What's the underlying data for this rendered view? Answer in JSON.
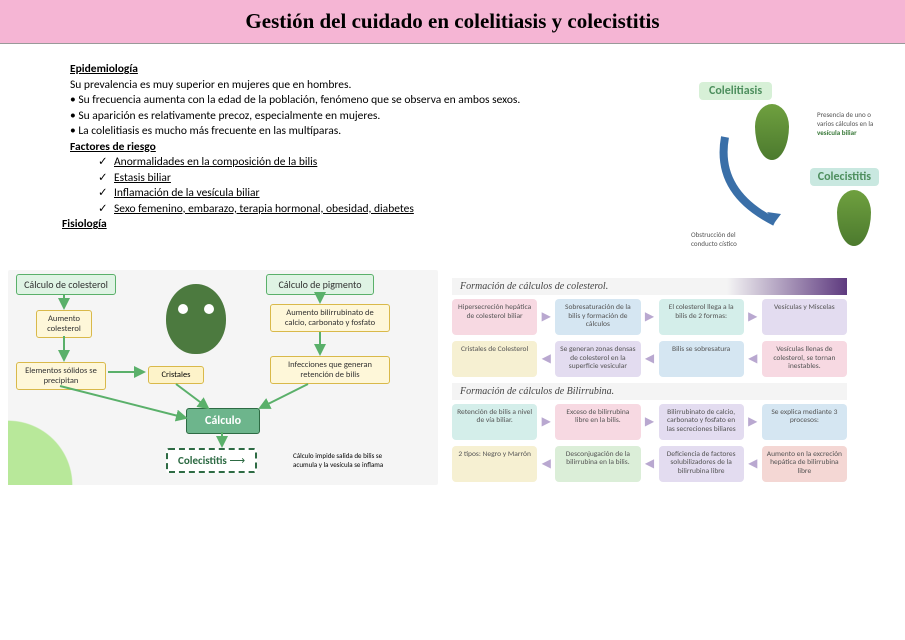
{
  "title": "Gestión del cuidado en colelitiasis y colecistitis",
  "epi": {
    "head": "Epidemiología",
    "l1": "Su prevalencia es muy superior en mujeres que en hombres.",
    "l2": "• Su frecuencia aumenta con la edad de la población, fenómeno que se observa en ambos sexos.",
    "l3": "• Su aparición es relativamente precoz, especialmente en mujeres.",
    "l4": "• La colelitiasis es mucho más frecuente en las multíparas."
  },
  "factors": {
    "head": "Factores de riesgo",
    "items": [
      "Anormalidades en la composición de la bilis",
      "Estasis biliar",
      "Inflamación de la vesícula biliar",
      "Sexo femenino, embarazo, terapia hormonal, obesidad, diabetes"
    ]
  },
  "fisio": "Fisiología",
  "topRight": {
    "colelitiasis": "Colelitiasis",
    "colecistitis": "Colecistitis",
    "desc1a": "Presencia de uno o varios cálculos en la ",
    "desc1b": "vesícula biliar",
    "desc2": "Obstrucción del conducto cístico"
  },
  "flowLeft": {
    "colesterol": "Cálculo de colesterol",
    "pigmento": "Cálculo de pigmento",
    "aumentoCol": "Aumento colesterol",
    "aumentoBil": "Aumento bilirrubinato de calcio, carbonato y fosfato",
    "elementos": "Elementos sólidos se precipitan",
    "cristales": "Cristales",
    "infecciones": "Infecciones que generan retención de bilis",
    "calculo": "Cálculo",
    "colecistitis": "Colecistitis",
    "impide": "Cálculo impide salida de bilis se acumula y la vesícula se inflama"
  },
  "flowRight": {
    "h1": "Formación de cálculos de colesterol.",
    "r1": [
      "Hipersecreción hepática de colesterol biliar",
      "Sobresaturación de la bilis y formación de cálculos",
      "El colesterol llega a la bilis de 2 formas:",
      "Vesículas y Miscelas"
    ],
    "r2": [
      "Cristales de Colesterol",
      "Se generan zonas densas de colesterol en la superficie vesicular",
      "Bilis se sobresatura",
      "Vesículas llenas de colesterol, se tornan inestables."
    ],
    "h2": "Formación de cálculos de Bilirrubina.",
    "r3": [
      "Retención de bilis a nivel de vía biliar.",
      "Exceso de bilirrubina libre en la bilis.",
      "Bilirrubinato de calcio, carbonato y fosfato en las secreciones biliares",
      "Se explica mediante 3 procesos:"
    ],
    "r4": [
      "2 tipos: Negro y Marrón",
      "Desconjugación de la bilirrubina en la bilis.",
      "Deficiencia de factores solubilizadores de la bilirrubina libre",
      "Aumento en la excreción hepática de bilirrubina libre"
    ]
  },
  "colors": {
    "banner": "#f5b5d4",
    "green": "#6db58c",
    "rowPalettes": {
      "r1": [
        "c-pink",
        "c-blue",
        "c-teal",
        "c-purple"
      ],
      "r2": [
        "c-yellow",
        "c-purple",
        "c-blue",
        "c-pink"
      ],
      "r3": [
        "c-teal",
        "c-pink",
        "c-purple",
        "c-blue"
      ],
      "r4": [
        "c-yellow",
        "c-green",
        "c-purple",
        "c-red"
      ]
    }
  }
}
